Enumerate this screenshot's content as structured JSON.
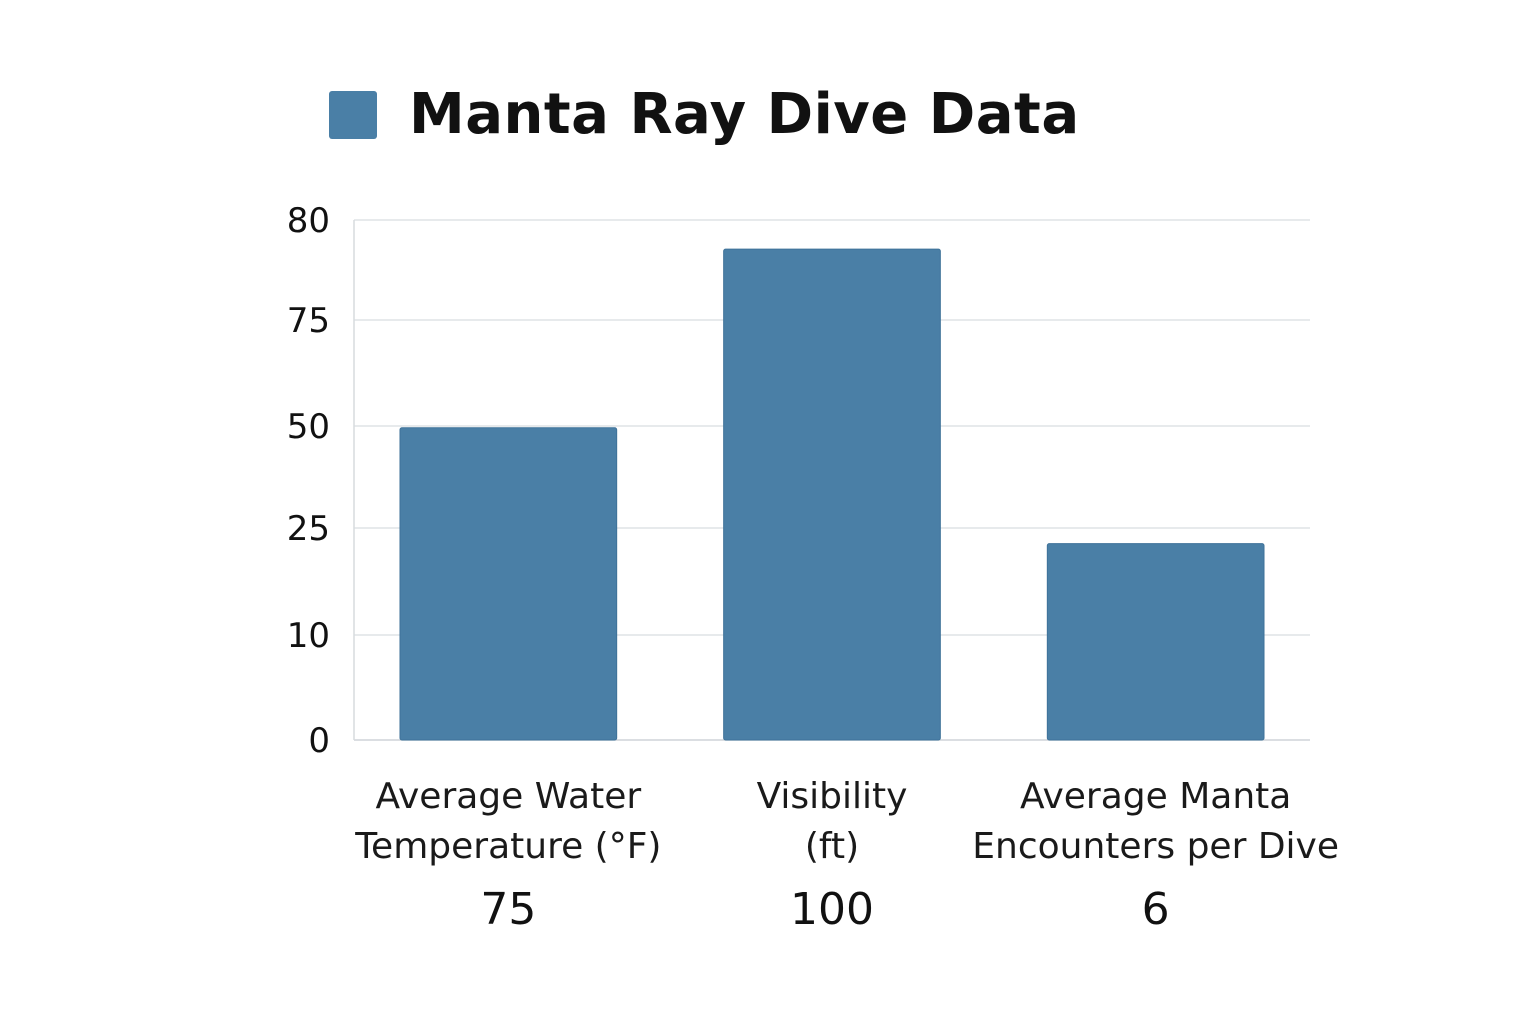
{
  "chart_data": {
    "type": "bar",
    "title": "Manta Ray Dive Data",
    "legend": {
      "placement": "top-left",
      "entries": [
        {
          "label": "",
          "color": "#4a7fa6"
        }
      ]
    },
    "grid": true,
    "y_ticks": [
      "0",
      "10",
      "25",
      "50",
      "75",
      "80"
    ],
    "categories": [
      "Average Water\nTemperature (°F)",
      "Visibility\n(ft)",
      "Average Manta\nEncounters per Dive"
    ],
    "value_labels": [
      "75",
      "100",
      "6"
    ],
    "values": [
      75,
      100,
      6
    ],
    "bar_color": "#4a7fa6",
    "xlabel": "",
    "ylabel": ""
  }
}
